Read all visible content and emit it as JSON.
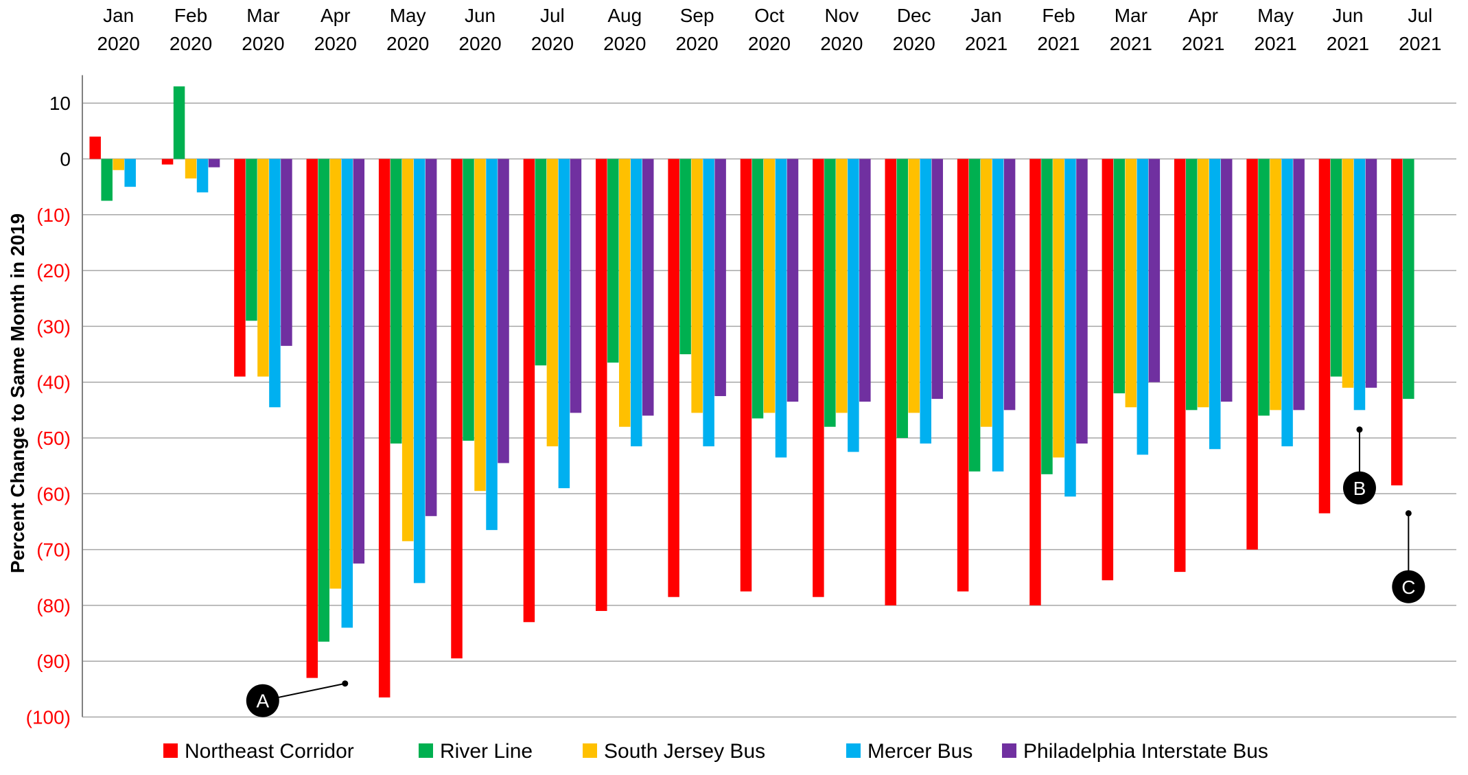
{
  "chart_data": {
    "type": "bar",
    "ylabel": "Percent Change to Same Month in 2019",
    "ylim": [
      -100,
      15
    ],
    "grid": true,
    "legend_position": "bottom",
    "categories": [
      [
        "Jan",
        "2020"
      ],
      [
        "Feb",
        "2020"
      ],
      [
        "Mar",
        "2020"
      ],
      [
        "Apr",
        "2020"
      ],
      [
        "May",
        "2020"
      ],
      [
        "Jun",
        "2020"
      ],
      [
        "Jul",
        "2020"
      ],
      [
        "Aug",
        "2020"
      ],
      [
        "Sep",
        "2020"
      ],
      [
        "Oct",
        "2020"
      ],
      [
        "Nov",
        "2020"
      ],
      [
        "Dec",
        "2020"
      ],
      [
        "Jan",
        "2021"
      ],
      [
        "Feb",
        "2021"
      ],
      [
        "Mar",
        "2021"
      ],
      [
        "Apr",
        "2021"
      ],
      [
        "May",
        "2021"
      ],
      [
        "Jun",
        "2021"
      ],
      [
        "Jul",
        "2021"
      ]
    ],
    "y_ticks": [
      {
        "value": 10,
        "label": "10",
        "color": "#000000"
      },
      {
        "value": 0,
        "label": "0",
        "color": "#000000"
      },
      {
        "value": -10,
        "label": "(10)",
        "color": "#FF0000"
      },
      {
        "value": -20,
        "label": "(20)",
        "color": "#FF0000"
      },
      {
        "value": -30,
        "label": "(30)",
        "color": "#FF0000"
      },
      {
        "value": -40,
        "label": "(40)",
        "color": "#FF0000"
      },
      {
        "value": -50,
        "label": "(50)",
        "color": "#FF0000"
      },
      {
        "value": -60,
        "label": "(60)",
        "color": "#FF0000"
      },
      {
        "value": -70,
        "label": "(70)",
        "color": "#FF0000"
      },
      {
        "value": -80,
        "label": "(80)",
        "color": "#FF0000"
      },
      {
        "value": -90,
        "label": "(90)",
        "color": "#FF0000"
      },
      {
        "value": -100,
        "label": "(100)",
        "color": "#FF0000"
      }
    ],
    "series": [
      {
        "name": "Northeast Corridor",
        "color": "#FF0000",
        "values": [
          4,
          -1,
          -39,
          -93,
          -96.5,
          -89.5,
          -83,
          -81,
          -78.5,
          -77.5,
          -78.5,
          -80,
          -77.5,
          -80,
          -75.5,
          -74,
          -70,
          -63.5,
          -58.5
        ]
      },
      {
        "name": "River Line",
        "color": "#00B050",
        "values": [
          -7.5,
          13,
          -29,
          -86.5,
          -51,
          -50.5,
          -37,
          -36.5,
          -35,
          -46.5,
          -48,
          -50,
          -56,
          -56.5,
          -42,
          -45,
          -46,
          -39,
          -43
        ]
      },
      {
        "name": "South Jersey Bus",
        "color": "#FFC000",
        "values": [
          -2,
          -3.5,
          -39,
          -77,
          -68.5,
          -59.5,
          -51.5,
          -48,
          -45.5,
          -45.5,
          -45.5,
          -45.5,
          -48,
          -53.5,
          -44.5,
          -44.5,
          -45,
          -41,
          null
        ]
      },
      {
        "name": "Mercer Bus",
        "color": "#00B0F0",
        "values": [
          -5,
          -6,
          -44.5,
          -84,
          -76,
          -66.5,
          -59,
          -51.5,
          -51.5,
          -53.5,
          -52.5,
          -51,
          -56,
          -60.5,
          -53,
          -52,
          -51.5,
          -45,
          null
        ]
      },
      {
        "name": "Philadelphia Interstate Bus",
        "color": "#7030A0",
        "values": [
          null,
          -1.5,
          -33.5,
          -72.5,
          -64,
          -54.5,
          -45.5,
          -46,
          -42.5,
          -43.5,
          -43.5,
          -43,
          -45,
          -51,
          -40,
          -43.5,
          -45,
          -41,
          null
        ]
      }
    ],
    "annotations": [
      {
        "label": "A",
        "category_index": 3,
        "value": -94
      },
      {
        "label": "B",
        "category_index": 17,
        "value": -48.5
      },
      {
        "label": "C",
        "category_index": 18,
        "value": -63.5
      }
    ]
  }
}
